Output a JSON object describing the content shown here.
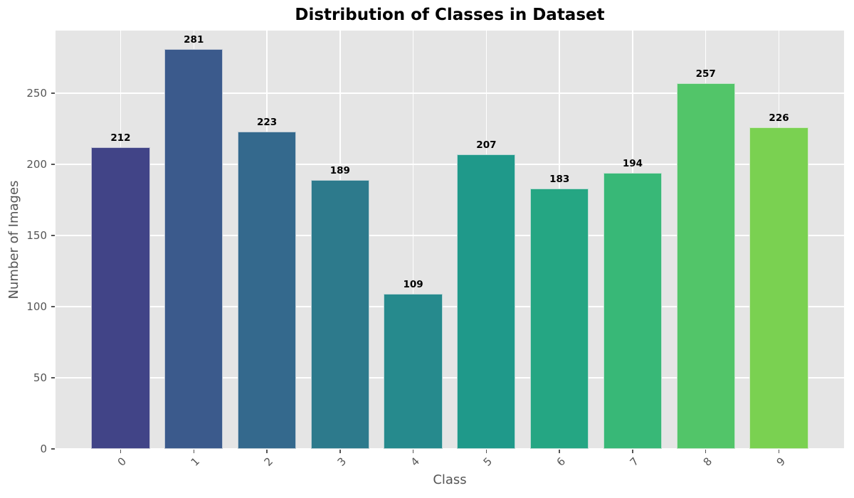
{
  "chart_data": {
    "type": "bar",
    "title": "Distribution of Classes in Dataset",
    "xlabel": "Class",
    "ylabel": "Number of Images",
    "categories": [
      "0",
      "1",
      "2",
      "3",
      "4",
      "5",
      "6",
      "7",
      "8",
      "9"
    ],
    "values": [
      212,
      281,
      223,
      189,
      109,
      207,
      183,
      194,
      257,
      226
    ],
    "bar_colors": [
      "#414487",
      "#3b5a8c",
      "#34698d",
      "#2d7a8c",
      "#268a8d",
      "#1f998a",
      "#25a683",
      "#38b877",
      "#52c569",
      "#7ad151"
    ],
    "yticks": [
      0,
      50,
      100,
      150,
      200,
      250
    ],
    "ylim": [
      0,
      294
    ],
    "grid": true,
    "legend_position": "none",
    "annotations": "values shown bold above each bar",
    "x_tick_rotation_deg": 45,
    "style": {
      "plot_background": "#e5e5e5",
      "figure_background": "#ffffff",
      "grid_color": "#ffffff",
      "tick_label_color": "#555555",
      "axis_label_color": "#555555",
      "title_color": "#000000",
      "annotation_color": "#000000",
      "bar_edge_color": "#eeeeee"
    }
  }
}
